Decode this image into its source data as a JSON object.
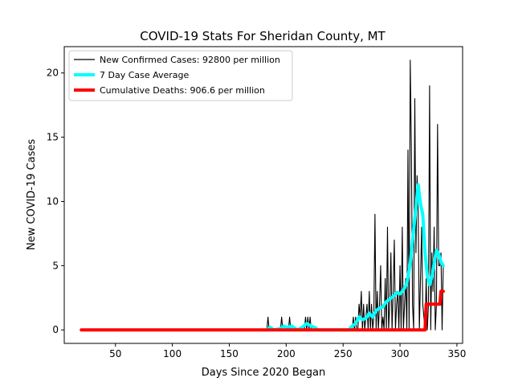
{
  "chart_data": {
    "type": "line",
    "title": "COVID-19 Stats For Sheridan County, MT",
    "xlabel": "Days Since 2020 Began",
    "ylabel": "New COVID-19 Cases",
    "xlim": [
      5,
      355
    ],
    "ylim": [
      -1.05,
      22.05
    ],
    "xticks": [
      50,
      100,
      150,
      200,
      250,
      300,
      350
    ],
    "yticks": [
      0,
      5,
      10,
      15,
      20
    ],
    "legend_position": "upper-left",
    "grid": false,
    "series": [
      {
        "name": "New Confirmed Cases: 92800 per million",
        "color": "#000000",
        "style": "thin",
        "x": [
          20,
          183,
          184,
          185,
          195,
          196,
          197,
          202,
          203,
          204,
          216,
          217,
          218,
          219,
          220,
          221,
          222,
          258,
          259,
          260,
          261,
          262,
          263,
          264,
          265,
          266,
          267,
          268,
          269,
          270,
          271,
          272,
          273,
          274,
          275,
          276,
          277,
          278,
          279,
          280,
          281,
          282,
          283,
          284,
          285,
          286,
          287,
          288,
          289,
          290,
          291,
          292,
          293,
          294,
          295,
          296,
          297,
          298,
          299,
          300,
          301,
          302,
          303,
          304,
          305,
          306,
          307,
          308,
          309,
          310,
          311,
          312,
          313,
          314,
          315,
          316,
          317,
          318,
          319,
          320,
          321,
          322,
          323,
          324,
          325,
          326,
          327,
          328,
          329,
          330,
          331,
          332,
          333,
          334,
          335,
          336,
          337,
          338
        ],
        "y": [
          0,
          0,
          1,
          0,
          0,
          1,
          0,
          0,
          1,
          0,
          0,
          1,
          0,
          1,
          0,
          1,
          0,
          0,
          1,
          0,
          1,
          0,
          0,
          2,
          1,
          3,
          0,
          2,
          0,
          1,
          2,
          0,
          3,
          0,
          2,
          0,
          1,
          9,
          0,
          3,
          0,
          2,
          5,
          0,
          1,
          0,
          4,
          0,
          8,
          0,
          2,
          6,
          0,
          3,
          7,
          0,
          2,
          3,
          0,
          5,
          0,
          8,
          0,
          2,
          4,
          0,
          14,
          0,
          21,
          14,
          2,
          0,
          18,
          6,
          12,
          9,
          0,
          4,
          8,
          2,
          1,
          0,
          4,
          0,
          2,
          19,
          0,
          6,
          3,
          8,
          0,
          2,
          16,
          5,
          5,
          6,
          0,
          5
        ]
      },
      {
        "name": "7 Day Case Average",
        "color": "#00ffff",
        "style": "thick",
        "x": [
          183,
          186,
          189,
          195,
          198,
          201,
          205,
          208,
          210,
          214,
          218,
          222,
          225,
          228,
          255,
          258,
          261,
          264,
          267,
          270,
          273,
          276,
          279,
          282,
          285,
          288,
          291,
          294,
          297,
          300,
          303,
          306,
          309,
          312,
          314,
          316,
          318,
          320,
          322,
          324,
          326,
          328,
          330,
          332,
          334,
          336,
          338
        ],
        "y": [
          0,
          0.2,
          0,
          0.1,
          0.3,
          0.2,
          0.3,
          0.1,
          0,
          0.2,
          0.5,
          0.3,
          0.2,
          0,
          0,
          0.3,
          0.5,
          1.0,
          0.8,
          0.9,
          1.3,
          1.0,
          1.5,
          1.7,
          1.8,
          2.2,
          2.4,
          2.6,
          2.9,
          2.8,
          3.1,
          3.6,
          5.2,
          7.8,
          9.5,
          11.3,
          9.8,
          9.0,
          6.0,
          4.2,
          3.5,
          4.1,
          5.2,
          6.2,
          5.9,
          5.3,
          5.0
        ]
      },
      {
        "name": "Cumulative Deaths: 906.6 per million",
        "color": "#ff0000",
        "style": "thick",
        "x": [
          20,
          322,
          323,
          325,
          330,
          331,
          335,
          336,
          338
        ],
        "y": [
          0,
          0,
          2,
          2,
          2,
          2,
          2,
          3,
          3
        ]
      }
    ]
  }
}
